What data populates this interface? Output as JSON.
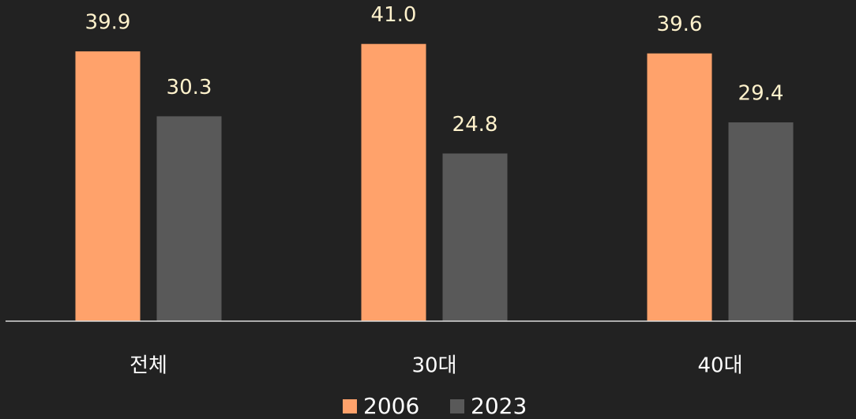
{
  "chart_data": {
    "type": "bar",
    "categories": [
      "전체",
      "30대",
      "40대"
    ],
    "series": [
      {
        "name": "2006",
        "color": "#ffa26b",
        "values": [
          39.9,
          41.0,
          39.6
        ],
        "value_labels": [
          "39.9",
          "41.0",
          "39.6"
        ]
      },
      {
        "name": "2023",
        "color": "#595959",
        "values": [
          30.3,
          24.8,
          29.4
        ],
        "value_labels": [
          "30.3",
          "24.8",
          "29.4"
        ]
      }
    ],
    "ylim": [
      0,
      47.5
    ],
    "legend": "bottom"
  }
}
